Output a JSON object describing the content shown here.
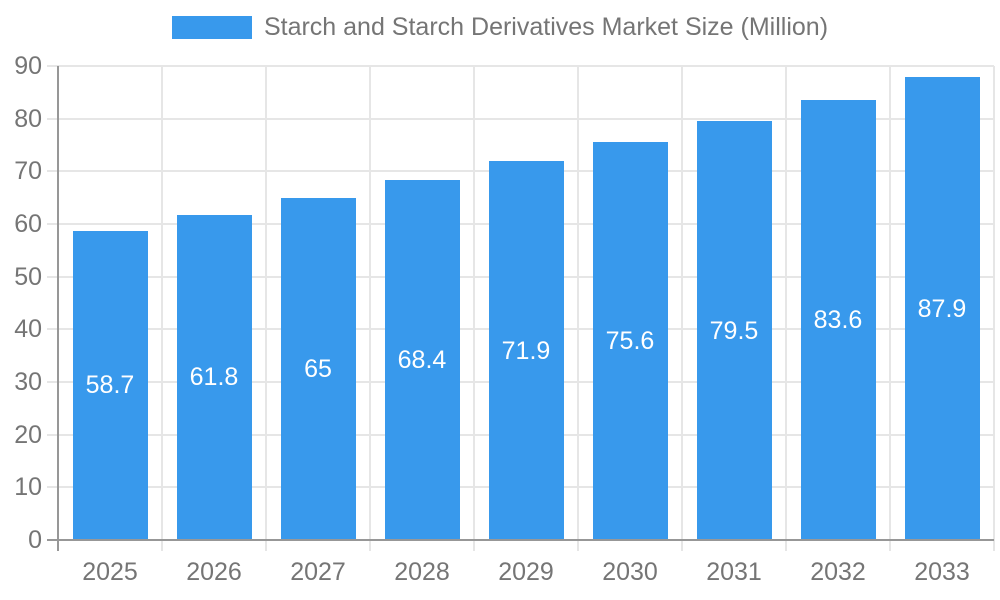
{
  "legend": {
    "label": "Starch and Starch Derivatives Market Size (Million)"
  },
  "colors": {
    "bar": "#3899ec",
    "axis_line": "#979797",
    "gridline": "#e6e6e6",
    "tick_text": "#757575",
    "value_label_text": "#ffffff",
    "background": "#ffffff"
  },
  "chart_data": {
    "type": "bar",
    "title": "Starch and Starch Derivatives Market Size (Million)",
    "categories": [
      "2025",
      "2026",
      "2027",
      "2028",
      "2029",
      "2030",
      "2031",
      "2032",
      "2033"
    ],
    "values": [
      58.7,
      61.8,
      65,
      68.4,
      71.9,
      75.6,
      79.5,
      83.6,
      87.9
    ],
    "value_labels": [
      "58.7",
      "61.8",
      "65",
      "68.4",
      "71.9",
      "75.6",
      "79.5",
      "83.6",
      "87.9"
    ],
    "xlabel": "",
    "ylabel": "",
    "ylim": [
      0,
      90
    ],
    "yticks": [
      0,
      10,
      20,
      30,
      40,
      50,
      60,
      70,
      80,
      90
    ],
    "grid": true,
    "legend_position": "top",
    "bar_label_position": "center"
  }
}
